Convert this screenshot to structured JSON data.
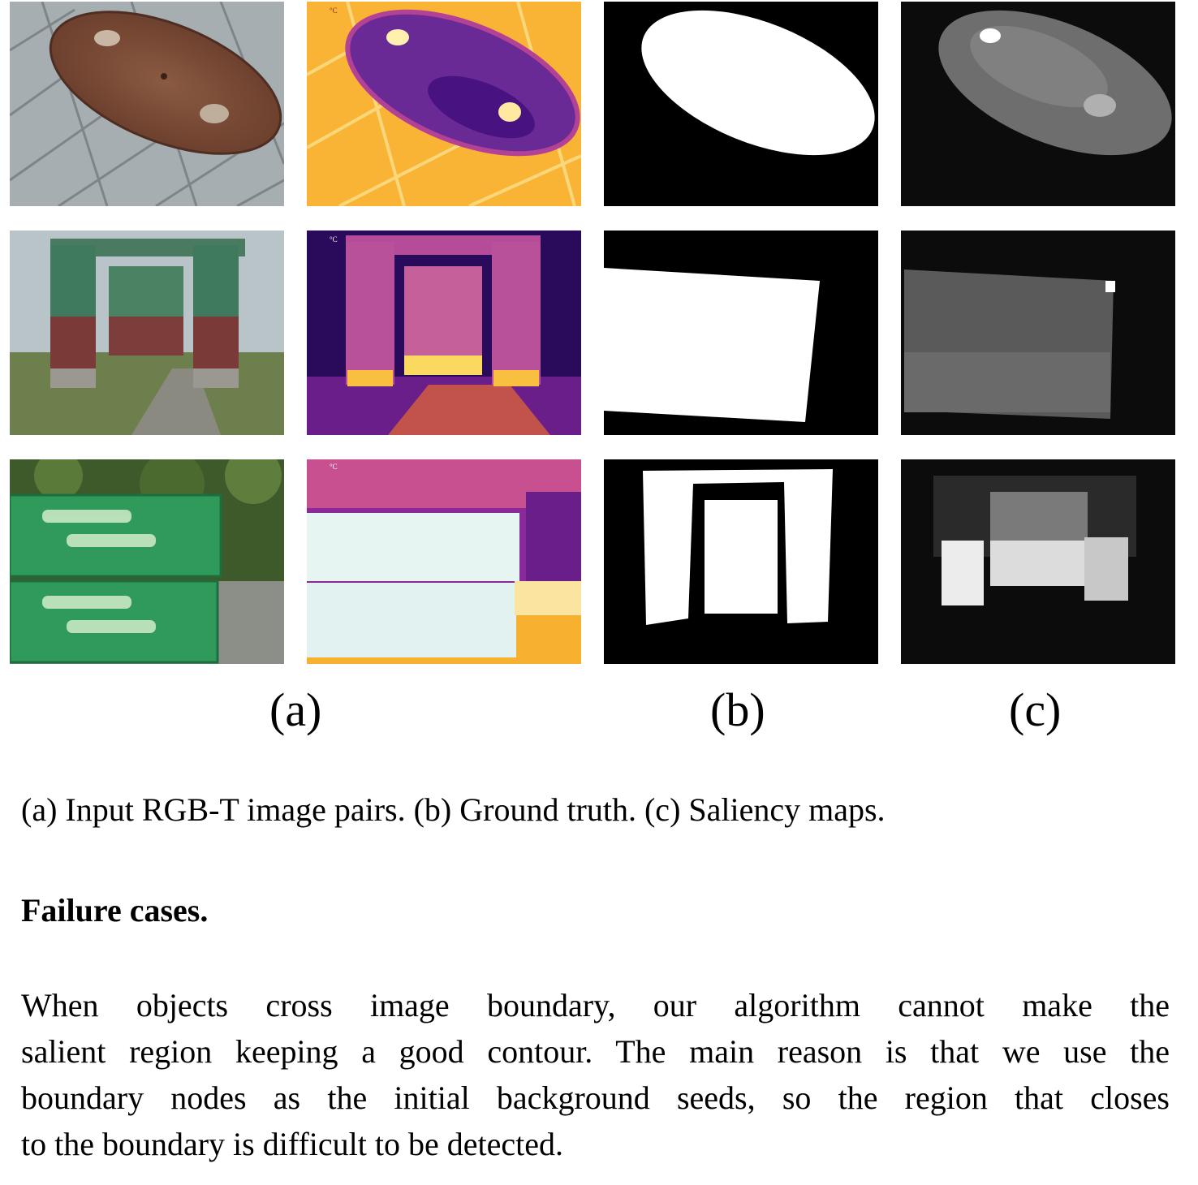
{
  "figure": {
    "column_labels": [
      "(a)",
      "(b)",
      "(c)"
    ],
    "thermal_unit_mark": "°C",
    "colors": {
      "thermal_hot": "#fff3b0",
      "thermal_warm": "#f7a41c",
      "thermal_mid": "#c43c8a",
      "thermal_cold": "#3a0a78",
      "mask_fg": "#ffffff",
      "mask_bg": "#000000"
    }
  },
  "caption": "(a) Input RGB-T image pairs. (b) Ground truth. (c) Saliency maps.",
  "section": {
    "heading": "Failure cases.",
    "paragraph_lines": [
      "When objects cross image boundary, our algorithm cannot make the",
      "salient region keeping a good contour. The main reason is that we use the",
      "boundary nodes as the initial background seeds, so the region that closes",
      "to the boundary is difficult to be detected."
    ]
  }
}
